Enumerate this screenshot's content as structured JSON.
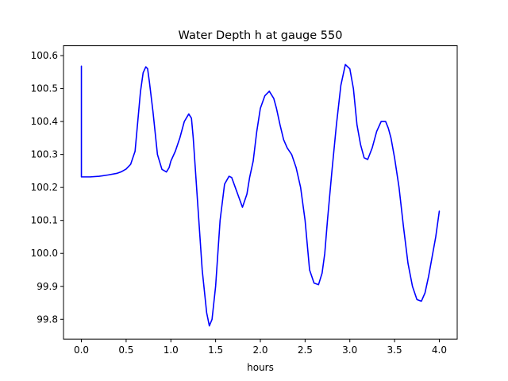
{
  "chart_data": {
    "type": "line",
    "title": "Water Depth h at gauge 550",
    "xlabel": "hours",
    "ylabel": "",
    "xlim": [
      -0.2,
      4.2
    ],
    "ylim": [
      99.74,
      100.63
    ],
    "xticks": [
      0.0,
      0.5,
      1.0,
      1.5,
      2.0,
      2.5,
      3.0,
      3.5,
      4.0
    ],
    "xtick_labels": [
      "0.0",
      "0.5",
      "1.0",
      "1.5",
      "2.0",
      "2.5",
      "3.0",
      "3.5",
      "4.0"
    ],
    "yticks": [
      99.8,
      99.9,
      100.0,
      100.1,
      100.2,
      100.3,
      100.4,
      100.5,
      100.6
    ],
    "ytick_labels": [
      "99.8",
      "99.9",
      "100.0",
      "100.1",
      "100.2",
      "100.3",
      "100.4",
      "100.5",
      "100.6"
    ],
    "grid": false,
    "series": [
      {
        "color": "#0000ff",
        "x": [
          0.0,
          0.0,
          0.02,
          0.1,
          0.2,
          0.3,
          0.4,
          0.45,
          0.5,
          0.55,
          0.6,
          0.63,
          0.66,
          0.69,
          0.72,
          0.74,
          0.76,
          0.8,
          0.85,
          0.9,
          0.95,
          0.98,
          1.0,
          1.05,
          1.1,
          1.15,
          1.2,
          1.23,
          1.25,
          1.3,
          1.35,
          1.4,
          1.43,
          1.46,
          1.5,
          1.55,
          1.6,
          1.65,
          1.68,
          1.72,
          1.76,
          1.8,
          1.85,
          1.88,
          1.92,
          1.96,
          2.0,
          2.05,
          2.1,
          2.15,
          2.18,
          2.22,
          2.26,
          2.3,
          2.35,
          2.4,
          2.45,
          2.5,
          2.55,
          2.6,
          2.65,
          2.69,
          2.72,
          2.75,
          2.8,
          2.85,
          2.9,
          2.95,
          3.0,
          3.04,
          3.08,
          3.12,
          3.16,
          3.2,
          3.25,
          3.3,
          3.35,
          3.4,
          3.43,
          3.46,
          3.5,
          3.55,
          3.6,
          3.65,
          3.7,
          3.75,
          3.8,
          3.84,
          3.88,
          3.92,
          3.96,
          4.0
        ],
        "y": [
          100.568,
          100.232,
          100.232,
          100.232,
          100.234,
          100.238,
          100.243,
          100.248,
          100.256,
          100.27,
          100.31,
          100.4,
          100.49,
          100.548,
          100.566,
          100.56,
          100.52,
          100.43,
          100.3,
          100.255,
          100.247,
          100.26,
          100.28,
          100.31,
          100.35,
          100.4,
          100.423,
          100.41,
          100.35,
          100.15,
          99.95,
          99.82,
          99.78,
          99.8,
          99.9,
          100.1,
          100.21,
          100.234,
          100.23,
          100.2,
          100.17,
          100.14,
          100.18,
          100.23,
          100.28,
          100.37,
          100.44,
          100.478,
          100.492,
          100.47,
          100.44,
          100.39,
          100.345,
          100.32,
          100.3,
          100.26,
          100.2,
          100.1,
          99.95,
          99.91,
          99.905,
          99.94,
          100.0,
          100.1,
          100.25,
          100.39,
          100.51,
          100.573,
          100.56,
          100.5,
          100.39,
          100.33,
          100.29,
          100.285,
          100.32,
          100.37,
          100.4,
          100.4,
          100.38,
          100.35,
          100.29,
          100.2,
          100.08,
          99.97,
          99.9,
          99.86,
          99.855,
          99.88,
          99.93,
          99.99,
          100.05,
          100.128
        ]
      }
    ]
  }
}
